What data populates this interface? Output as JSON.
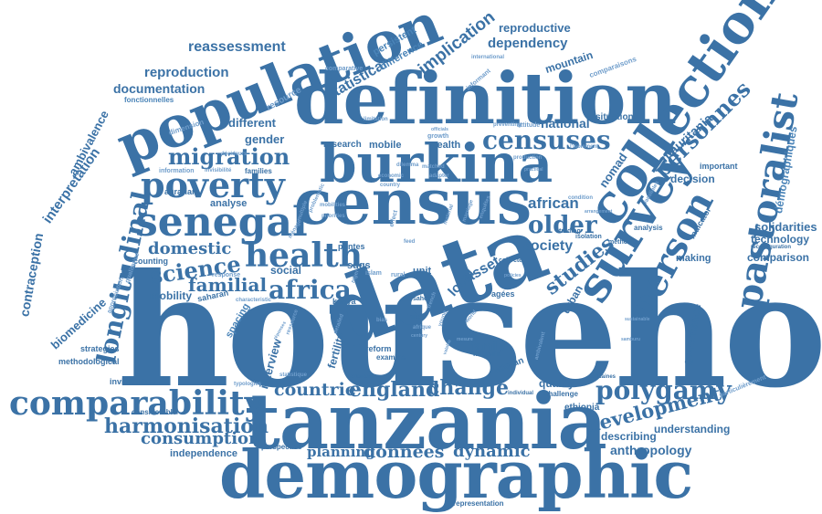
{
  "accent_colors": {
    "dark": "#3b72a6",
    "mid": "#4a84b8",
    "light": "#6f9dcb"
  },
  "words": {
    "household": "household",
    "tanzania": "tanzania",
    "demographic": "demographic",
    "data": "data",
    "census": "census",
    "definition": "definition",
    "population": "population",
    "burkina": "burkina",
    "collection": "collection",
    "survey": "survey",
    "pastoralist": "pastoralist",
    "person": "person",
    "senegal": "senegal",
    "poverty": "poverty",
    "health": "health",
    "comparability": "comparability",
    "longitudinal": "longitudinal",
    "censuses": "censuses",
    "africa": "africa",
    "polygamy": "polygamy",
    "migration": "migration",
    "england": "england",
    "countrie": "countrie",
    "change": "change",
    "harmonisation": "harmonisation",
    "science": "science",
    "older": "older",
    "personnes": "personnes",
    "studies": "studies",
    "development": "development",
    "familial": "familial",
    "domestic": "domestic",
    "consumption": "consumption",
    "données": "données",
    "dynamic": "dynamic",
    "planning": "planning",
    "reassessment": "reassessment",
    "reproduction": "reproduction",
    "documentation": "documentation",
    "implication": "implication",
    "statistical": "statistical",
    "persistent": "persistent",
    "difference": "difference",
    "dependency": "dependency",
    "reproductive": "reproductive",
    "mountain": "mountain",
    "national": "national",
    "african": "african",
    "society": "society",
    "social": "social",
    "asset": "asset",
    "local": "local",
    "family": "family",
    "woman": "woman",
    "sdgs": "sdgs",
    "unit": "unit",
    "mobility": "mobility",
    "analyse": "analyse",
    "agrarian": "agrarian",
    "gender": "gender",
    "different": "different",
    "research": "research",
    "mobile": "mobile",
    "wealth": "wealth",
    "ambivalence": "ambivalence",
    "interpretation": "interpretation",
    "contraception": "contraception",
    "biomedicine": "biomedicine",
    "strategies": "strategies",
    "methodological": "methodological",
    "independence": "independence",
    "considerable": "considerable",
    "invisibilities": "invisibilities",
    "interview": "interview",
    "fertility": "fertility",
    "spacing": "spacing",
    "saharan": "saharan",
    "counting": "counting",
    "anthropology": "anthropology",
    "describing": "describing",
    "understanding": "understanding",
    "ethiopia": "ethiopia",
    "quality": "quality",
    "challenge": "challenge",
    "governance": "governance",
    "making": "making",
    "comparison": "comparison",
    "technology": "technology",
    "solidarities": "solidarities",
    "démographiques": "démographiques",
    "mauritania": "mauritania",
    "nomad": "nomad",
    "decision": "decision",
    "important": "important",
    "urban": "urban",
    "situation": "situation",
    "fonctionnelles": "fonctionnelles",
    "resource": "resource",
    "comparative": "comparative",
    "representation": "representation",
    "perspective": "perspective",
    "reform": "reform",
    "examine": "examine",
    "migrant": "migrant",
    "agées": "agées",
    "pontes": "pontes",
    "kenya": "kenya",
    "sahel": "sahel",
    "image": "image",
    "collecte": "collecte",
    "méthodes": "méthodes",
    "analysis": "analysis",
    "trading": "trading",
    "isolation": "isolation",
    "indicator": "indicator",
    "reconfiguration": "reconfiguration",
    "particulièrement": "particulièrement",
    "africaines": "africaines",
    "individual": "individual",
    "nationales": "nationales",
    "typologies": "typologies",
    "statistique": "statistique",
    "information": "information",
    "invisibilité": "invisibilité",
    "families": "families",
    "dimension": "dimension",
    "response": "response",
    "characteristic": "characteristic",
    "appréciation": "appréciation",
    "qualitative": "qualitative",
    "growth": "growth",
    "preventing": "preventing",
    "attitude": "attitude",
    "international": "international",
    "informant": "informant",
    "comparaisons": "comparaisons",
    "limitation": "limitation",
    "l_isolement": "l'isolement",
    "condition": "condition",
    "arrangement": "arrangement",
    "familiales": "familiales",
    "ambivalent": "ambivalent",
    "decideurs": "décideurs",
    "islam": "islam",
    "rural": "rural",
    "french": "french",
    "niger": "niger",
    "afrique": "afrique",
    "young": "young",
    "world": "world",
    "century": "century",
    "feed": "feed",
    "effect": "effect",
    "dilemma": "dilemma",
    "economic": "economic",
    "country": "country",
    "matched": "matched",
    "adapter": "adapter",
    "production": "production",
    "practical": "practical",
    "policies": "policies",
    "enquetes": "enquêtes",
    "marriage": "marriage",
    "material": "material",
    "multiple": "multiple",
    "problematic": "problematic",
    "priorities": "priorities",
    "mobilities": "mobilities",
    "menage": "ménage",
    "officials": "officials",
    "detailed": "detailed",
    "ressource": "ressource",
    "mesure": "mesure",
    "valable": "valable",
    "bias": "bias",
    "reponses": "réponses",
    "samburu": "samburu",
    "sustainable": "sustainable"
  }
}
